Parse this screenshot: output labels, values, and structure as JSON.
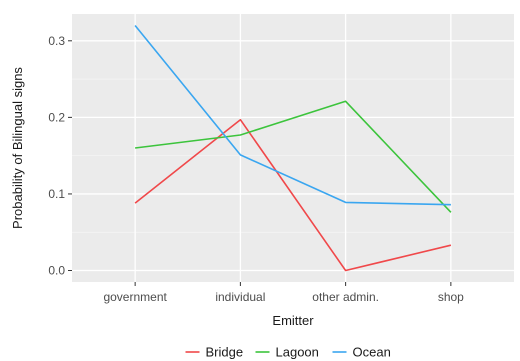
{
  "chart_data": {
    "type": "line",
    "title": "",
    "xlabel": "Emitter",
    "ylabel": "Probability of Bilingual signs",
    "categories": [
      "government",
      "individual",
      "other admin.",
      "shop"
    ],
    "ylim": [
      -0.015,
      0.335
    ],
    "yticks": [
      0.0,
      0.1,
      0.2,
      0.3
    ],
    "ytick_labels": [
      "0.0",
      "0.1",
      "0.2",
      "0.3"
    ],
    "grid": true,
    "legend_position": "bottom",
    "series": [
      {
        "name": "Bridge",
        "color": "#f0484a",
        "values": [
          0.088,
          0.197,
          0.0,
          0.033
        ]
      },
      {
        "name": "Lagoon",
        "color": "#3cc43c",
        "values": [
          0.16,
          0.177,
          0.221,
          0.076
        ]
      },
      {
        "name": "Ocean",
        "color": "#3aa6f0",
        "values": [
          0.32,
          0.151,
          0.089,
          0.086
        ]
      }
    ]
  }
}
